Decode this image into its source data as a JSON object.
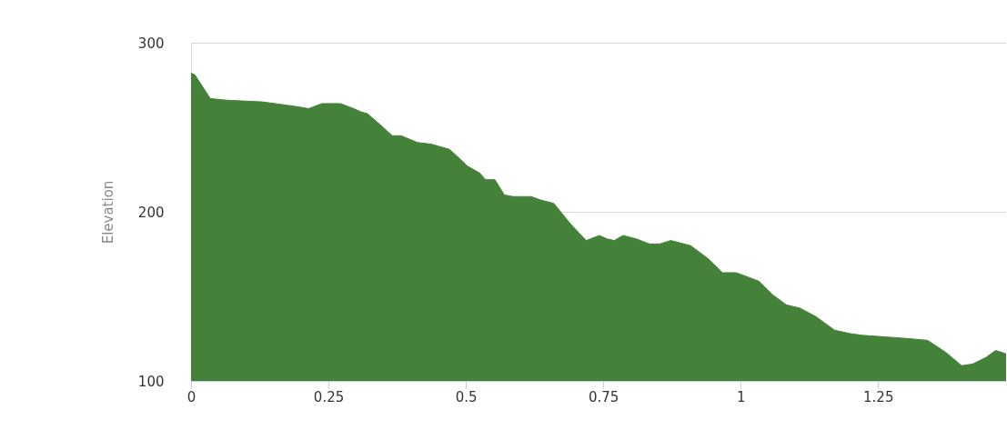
{
  "chart_data": {
    "type": "area",
    "ylabel": "Elevation",
    "x": [
      0,
      0.007,
      0.035,
      0.065,
      0.13,
      0.197,
      0.214,
      0.238,
      0.272,
      0.296,
      0.31,
      0.321,
      0.346,
      0.366,
      0.382,
      0.412,
      0.437,
      0.47,
      0.487,
      0.503,
      0.525,
      0.536,
      0.553,
      0.57,
      0.586,
      0.619,
      0.636,
      0.66,
      0.69,
      0.719,
      0.743,
      0.757,
      0.77,
      0.786,
      0.81,
      0.834,
      0.853,
      0.873,
      0.909,
      0.942,
      0.967,
      0.992,
      1.033,
      1.058,
      1.083,
      1.108,
      1.137,
      1.171,
      1.199,
      1.22,
      1.265,
      1.306,
      1.34,
      1.373,
      1.402,
      1.422,
      1.447,
      1.464,
      1.483
    ],
    "series": [
      {
        "color": "#458239",
        "values": [
          282,
          281,
          267,
          266,
          265,
          262,
          261,
          264,
          264,
          261,
          259,
          258,
          251,
          245,
          245,
          241,
          240,
          237,
          232,
          227,
          223,
          219,
          219,
          210,
          209,
          209,
          207,
          205,
          193,
          183,
          186,
          184,
          183,
          186,
          184,
          181,
          181,
          183,
          180,
          172,
          164,
          164,
          159,
          151,
          145,
          143,
          138,
          130,
          128,
          127,
          126,
          125,
          124,
          117,
          109,
          110,
          114,
          118,
          116
        ]
      }
    ],
    "xlim": [
      0,
      1.483
    ],
    "xticks": [
      0,
      0.25,
      0.5,
      0.75,
      1,
      1.25
    ],
    "ylim": [
      100,
      300
    ],
    "yticks": [
      100,
      200,
      300
    ],
    "grid": "y"
  }
}
